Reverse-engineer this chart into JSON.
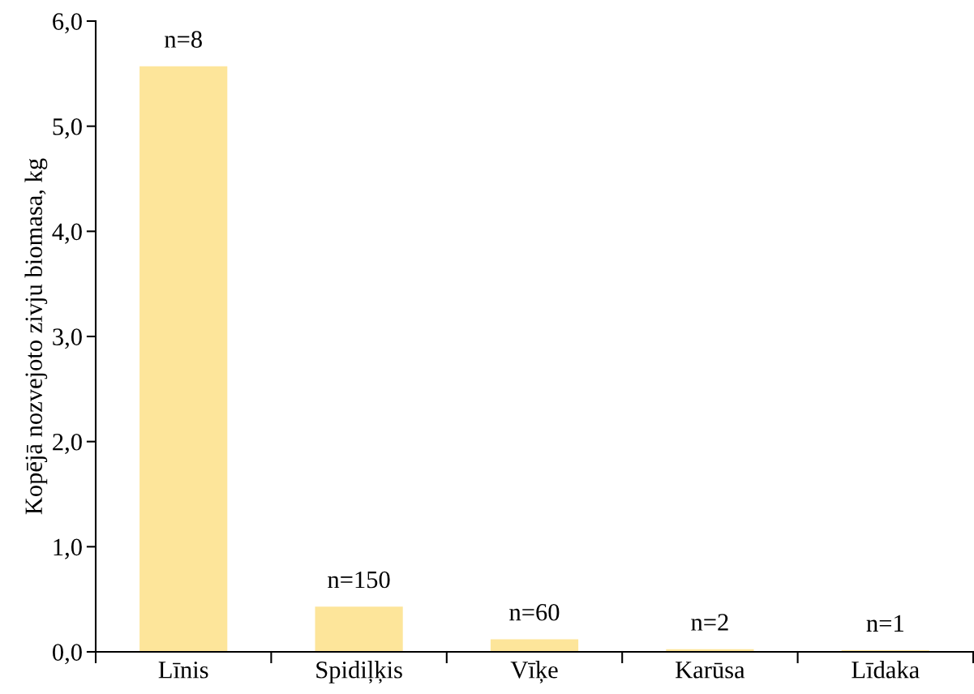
{
  "chart_data": {
    "type": "bar",
    "ylabel": "Kopējā nozvejoto zivju biomasa, kg",
    "categories": [
      "Līnis",
      "Spidiļķis",
      "Vīķe",
      "Karūsa",
      "Līdaka"
    ],
    "values": [
      5.57,
      0.43,
      0.12,
      0.025,
      0.015
    ],
    "annotations": [
      {
        "text": "n=8",
        "x": "Līnis",
        "y": 5.57
      },
      {
        "text": "n=150",
        "x": "Spidiļķis",
        "y": 0.43
      },
      {
        "text": "n=60",
        "x": "Vīķe",
        "y": 0.12
      },
      {
        "text": "n=2",
        "x": "Karūsa",
        "y": 0.025
      },
      {
        "text": "n=1",
        "x": "Līdaka",
        "y": 0.015
      }
    ],
    "color": "#fde59a",
    "ylim": [
      0,
      6
    ],
    "yticks": [
      {
        "value": 0,
        "label": "0,0"
      },
      {
        "value": 1,
        "label": "1,0"
      },
      {
        "value": 2,
        "label": "2,0"
      },
      {
        "value": 3,
        "label": "3,0"
      },
      {
        "value": 4,
        "label": "4,0"
      },
      {
        "value": 5,
        "label": "5,0"
      },
      {
        "value": 6,
        "label": "6,0"
      }
    ],
    "grid": false,
    "legend": false
  }
}
